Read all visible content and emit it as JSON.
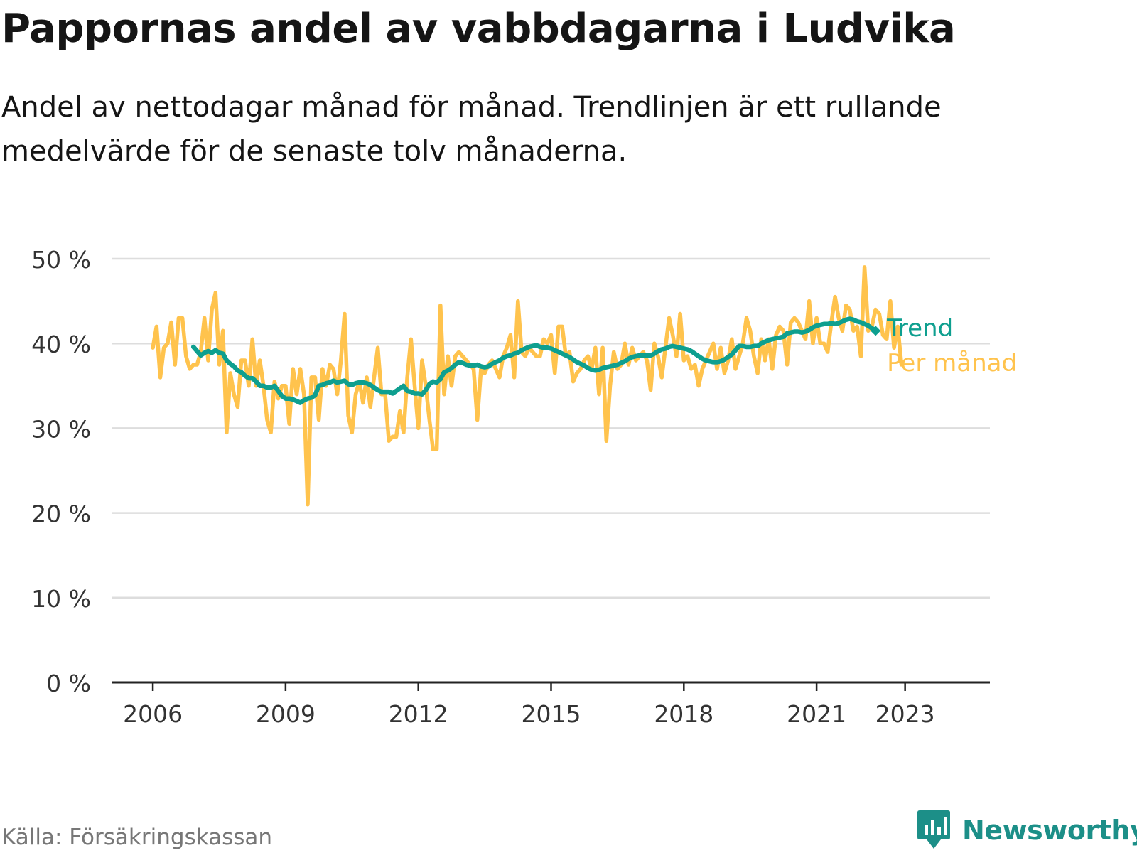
{
  "title": "Pappornas andel av vabbdagarna i Ludvika",
  "subtitle": "Andel av nettodagar månad för månad. Trendlinjen är ett rullande medelvärde för de senaste tolv månaderna.",
  "source": "Källa: Försäkringskassan",
  "brand": "Newsworthy",
  "colors": {
    "trend": "#0e9f8f",
    "monthly": "#ffc34d",
    "grid": "#dddddd",
    "axis": "#222222",
    "brand": "#1c8f88"
  },
  "chart_data": {
    "type": "line",
    "title": "Pappornas andel av vabbdagarna i Ludvika",
    "xlabel": "",
    "ylabel": "",
    "x_ticks": [
      "2006",
      "2009",
      "2012",
      "2015",
      "2018",
      "2021",
      "2023"
    ],
    "y_ticks": [
      "0 %",
      "10 %",
      "20 %",
      "30 %",
      "40 %",
      "50 %"
    ],
    "ylim": [
      0,
      50
    ],
    "xlim": [
      "2005-02",
      "2024-12"
    ],
    "grid": true,
    "legend": "inline labels at line ends (right)",
    "start": "2006-01",
    "series": [
      {
        "name": "Per månad",
        "color": "#ffc34d",
        "values": [
          39.5,
          42,
          36,
          39.5,
          40,
          42.5,
          37.5,
          43,
          43,
          38.5,
          37,
          37.5,
          37.5,
          39,
          43,
          38,
          44,
          46,
          37.5,
          41.5,
          29.5,
          36.5,
          34,
          32.5,
          38,
          38,
          35,
          40.5,
          35,
          38,
          35,
          31,
          29.5,
          35.5,
          33.5,
          35,
          35,
          30.5,
          37,
          34,
          37,
          34,
          21,
          36,
          36,
          31,
          37,
          35,
          37.5,
          37,
          34,
          38,
          43.5,
          31.5,
          29.5,
          34,
          35.5,
          33,
          36,
          32.5,
          36,
          39.5,
          34,
          34,
          28.5,
          29,
          29,
          32,
          29.5,
          36,
          40.5,
          35,
          30,
          38,
          35,
          31,
          27.5,
          27.5,
          44.5,
          34,
          38.5,
          35,
          38.5,
          39,
          38.5,
          38,
          37.5,
          37,
          31,
          37,
          36.5,
          37.5,
          38,
          37,
          36,
          38.5,
          39.5,
          41,
          36,
          45,
          39,
          38.5,
          39.5,
          39,
          38.5,
          38.5,
          40.5,
          40,
          41,
          36.5,
          42,
          42,
          38.5,
          39,
          35.5,
          36.5,
          37,
          38,
          38.5,
          37,
          39.5,
          34,
          39.5,
          28.5,
          35,
          39,
          37,
          37.5,
          40,
          37.5,
          39.5,
          38,
          38.5,
          39,
          38,
          34.5,
          40,
          38.5,
          36,
          39.5,
          43,
          41,
          38.5,
          43.5,
          38,
          38.5,
          37,
          37.5,
          35,
          37,
          38,
          39,
          40,
          37,
          39.5,
          36.5,
          38,
          40.5,
          37,
          38.5,
          40,
          43,
          41.5,
          38.5,
          36.5,
          40.5,
          38,
          40.5,
          37,
          41,
          42,
          41.5,
          37.5,
          42.5,
          43,
          42.5,
          41.5,
          40.5,
          45,
          40,
          43,
          40,
          40,
          39,
          42.5,
          45.5,
          43,
          41.5,
          44.5,
          44,
          41.5,
          42,
          38.5,
          49,
          41.5,
          42,
          44,
          43.5,
          41,
          40.5,
          45,
          39.5,
          42,
          37.5
        ]
      },
      {
        "name": "Trend",
        "color": "#0e9f8f",
        "values": [
          null,
          null,
          null,
          null,
          null,
          null,
          null,
          null,
          null,
          null,
          null,
          39.6,
          39.1,
          38.6,
          38.9,
          39.1,
          38.9,
          39.2,
          38.9,
          38.8,
          38,
          37.6,
          37.3,
          36.8,
          36.6,
          36.2,
          35.9,
          35.9,
          35.5,
          35,
          35,
          34.8,
          34.8,
          35,
          34.4,
          33.8,
          33.5,
          33.5,
          33.4,
          33.2,
          33,
          33.3,
          33.5,
          33.6,
          33.9,
          35,
          35.1,
          35.3,
          35.4,
          35.6,
          35.4,
          35.5,
          35.6,
          35.2,
          35.1,
          35.3,
          35.4,
          35.4,
          35.3,
          35.1,
          34.8,
          34.5,
          34.3,
          34.3,
          34.3,
          34.1,
          34.4,
          34.7,
          35,
          34.4,
          34.3,
          34.1,
          34.1,
          34,
          34.5,
          35.2,
          35.5,
          35.4,
          35.8,
          36.6,
          36.8,
          37.1,
          37.5,
          37.8,
          37.7,
          37.5,
          37.4,
          37.4,
          37.5,
          37.3,
          37.2,
          37.3,
          37.6,
          37.8,
          38,
          38.3,
          38.5,
          38.6,
          38.8,
          38.9,
          39.2,
          39.4,
          39.6,
          39.7,
          39.8,
          39.6,
          39.5,
          39.5,
          39.4,
          39.2,
          39,
          38.8,
          38.6,
          38.4,
          38.1,
          37.8,
          37.6,
          37.4,
          37.1,
          36.9,
          36.8,
          36.9,
          37.1,
          37.2,
          37.3,
          37.4,
          37.5,
          37.7,
          37.9,
          38.2,
          38.4,
          38.5,
          38.6,
          38.6,
          38.6,
          38.6,
          38.8,
          39.1,
          39.3,
          39.4,
          39.6,
          39.7,
          39.6,
          39.5,
          39.4,
          39.3,
          39.1,
          38.8,
          38.5,
          38.2,
          38,
          37.9,
          37.8,
          37.8,
          37.9,
          38.1,
          38.4,
          38.7,
          39.2,
          39.7,
          39.7,
          39.6,
          39.6,
          39.7,
          39.7,
          40,
          40.2,
          40.4,
          40.5,
          40.6,
          40.7,
          40.8,
          41.2,
          41.3,
          41.4,
          41.4,
          41.3,
          41.4,
          41.6,
          41.9,
          42.1,
          42.2,
          42.3,
          42.3,
          42.4,
          42.3,
          42.4,
          42.6,
          42.8,
          42.9,
          42.8,
          42.6,
          42.5,
          42.3,
          42.1,
          41.8,
          41.5
        ]
      }
    ]
  }
}
